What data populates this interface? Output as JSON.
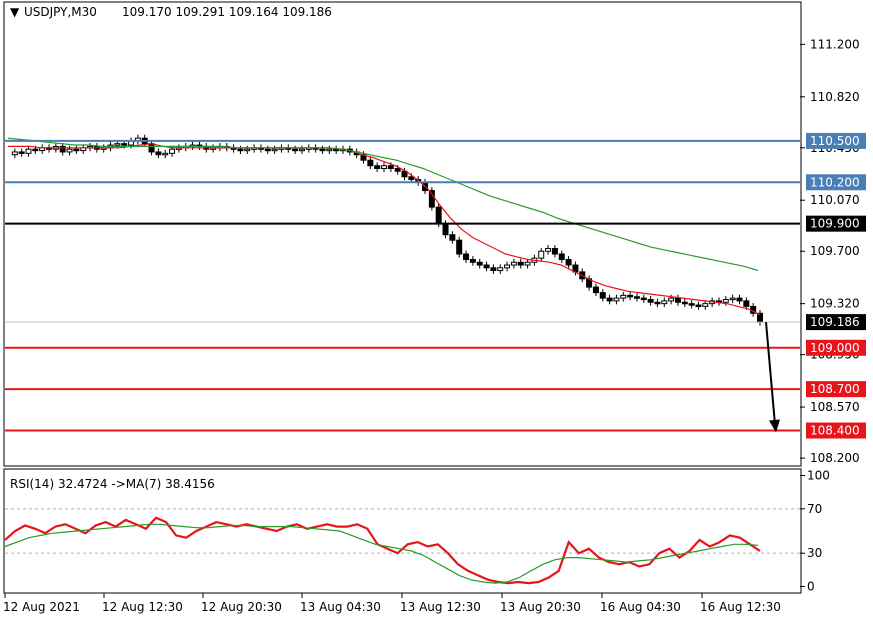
{
  "chart_data": [
    {
      "type": "candlestick",
      "header": {
        "symbol": "USDJPY,M30",
        "ohlc": "109.170 109.291 109.164 109.186"
      },
      "y_ticks": [
        "111.200",
        "110.820",
        "110.450",
        "110.070",
        "109.700",
        "109.320",
        "108.950",
        "108.570",
        "108.200"
      ],
      "y_tick_values": [
        111.2,
        110.82,
        110.45,
        110.07,
        109.7,
        109.32,
        108.95,
        108.57,
        108.2
      ],
      "ylim": [
        108.15,
        111.5
      ],
      "x_ticks": [
        "12 Aug 2021",
        "12 Aug 12:30",
        "12 Aug 20:30",
        "13 Aug 04:30",
        "13 Aug 12:30",
        "13 Aug 20:30",
        "16 Aug 04:30",
        "16 Aug 12:30"
      ],
      "levels": [
        {
          "value": 110.5,
          "label": "110.500",
          "color": "#4a7fb5"
        },
        {
          "value": 110.2,
          "label": "110.200",
          "color": "#4a7fb5"
        },
        {
          "value": 109.9,
          "label": "109.900",
          "color": "#000000"
        },
        {
          "value": 109.0,
          "label": "109.000",
          "color": "#e8141c"
        },
        {
          "value": 108.7,
          "label": "108.700",
          "color": "#e8141c"
        },
        {
          "value": 108.4,
          "label": "108.400",
          "color": "#e8141c"
        }
      ],
      "current_price": {
        "value": 109.186,
        "label": "109.186"
      },
      "arrow": {
        "from": 109.186,
        "to": 108.4
      },
      "price_path": [
        110.4,
        110.42,
        110.41,
        110.44,
        110.43,
        110.45,
        110.44,
        110.46,
        110.42,
        110.44,
        110.43,
        110.45,
        110.46,
        110.44,
        110.45,
        110.47,
        110.48,
        110.47,
        110.5,
        110.52,
        110.48,
        110.42,
        110.4,
        110.41,
        110.44,
        110.45,
        110.46,
        110.47,
        110.46,
        110.44,
        110.45,
        110.46,
        110.45,
        110.44,
        110.43,
        110.44,
        110.45,
        110.44,
        110.43,
        110.44,
        110.45,
        110.44,
        110.43,
        110.44,
        110.45,
        110.44,
        110.43,
        110.44,
        110.43,
        110.44,
        110.42,
        110.4,
        110.36,
        110.32,
        110.3,
        110.32,
        110.3,
        110.28,
        110.24,
        110.22,
        110.2,
        110.14,
        110.02,
        109.9,
        109.82,
        109.78,
        109.68,
        109.64,
        109.62,
        109.6,
        109.58,
        109.56,
        109.58,
        109.6,
        109.62,
        109.6,
        109.62,
        109.65,
        109.7,
        109.72,
        109.68,
        109.64,
        109.6,
        109.55,
        109.5,
        109.44,
        109.4,
        109.36,
        109.34,
        109.36,
        109.38,
        109.37,
        109.36,
        109.35,
        109.33,
        109.32,
        109.34,
        109.36,
        109.33,
        109.32,
        109.31,
        109.3,
        109.32,
        109.34,
        109.33,
        109.35,
        109.36,
        109.34,
        109.3,
        109.25,
        109.186
      ],
      "ma_fast": [
        110.46,
        110.46,
        110.46,
        110.45,
        110.45,
        110.45,
        110.45,
        110.45,
        110.45,
        110.45,
        110.45,
        110.46,
        110.47,
        110.48,
        110.46,
        110.45,
        110.45,
        110.45,
        110.45,
        110.45,
        110.45,
        110.45,
        110.45,
        110.45,
        110.45,
        110.45,
        110.45,
        110.45,
        110.45,
        110.45,
        110.44,
        110.43,
        110.4,
        110.38,
        110.35,
        110.32,
        110.28,
        110.22,
        110.15,
        110.04,
        109.94,
        109.86,
        109.8,
        109.76,
        109.72,
        109.68,
        109.66,
        109.64,
        109.63,
        109.62,
        109.6,
        109.56,
        109.52,
        109.48,
        109.45,
        109.43,
        109.41,
        109.4,
        109.39,
        109.38,
        109.37,
        109.36,
        109.35,
        109.34,
        109.33,
        109.32,
        109.3,
        109.28,
        109.24
      ],
      "ma_slow": [
        110.52,
        110.51,
        110.5,
        110.49,
        110.48,
        110.47,
        110.47,
        110.46,
        110.46,
        110.46,
        110.46,
        110.46,
        110.46,
        110.46,
        110.46,
        110.46,
        110.46,
        110.45,
        110.45,
        110.45,
        110.45,
        110.45,
        110.45,
        110.45,
        110.45,
        110.44,
        110.42,
        110.4,
        110.38,
        110.36,
        110.33,
        110.3,
        110.26,
        110.22,
        110.18,
        110.14,
        110.1,
        110.07,
        110.04,
        110.01,
        109.98,
        109.94,
        109.91,
        109.88,
        109.85,
        109.82,
        109.79,
        109.76,
        109.73,
        109.71,
        109.69,
        109.67,
        109.65,
        109.63,
        109.61,
        109.59,
        109.56
      ]
    },
    {
      "type": "line",
      "header": "RSI(14) 32.4724 ->MA(7) 38.4156",
      "y_ticks": [
        "100",
        "70",
        "30",
        "0"
      ],
      "y_tick_values": [
        100,
        70,
        30,
        0
      ],
      "dashed_levels": [
        70,
        30
      ],
      "ylim": [
        -5,
        105
      ],
      "series": [
        {
          "color": "#e8141c",
          "values": [
            42,
            50,
            55,
            52,
            48,
            54,
            56,
            52,
            48,
            55,
            58,
            54,
            60,
            56,
            52,
            62,
            58,
            46,
            44,
            50,
            54,
            58,
            56,
            54,
            56,
            54,
            52,
            50,
            54,
            56,
            52,
            54,
            56,
            54,
            54,
            56,
            52,
            38,
            34,
            30,
            38,
            40,
            36,
            38,
            30,
            20,
            14,
            10,
            6,
            4,
            3,
            4,
            3,
            4,
            8,
            14,
            40,
            30,
            34,
            26,
            22,
            20,
            22,
            18,
            20,
            30,
            34,
            26,
            32,
            42,
            36,
            40,
            46,
            44,
            38,
            32
          ]
        },
        {
          "color": "#2a9a2a",
          "values": [
            36,
            40,
            44,
            46,
            48,
            49,
            50,
            51,
            52,
            53,
            54,
            55,
            56,
            56,
            55,
            54,
            53,
            53,
            54,
            55,
            55,
            54,
            54,
            54,
            54,
            53,
            52,
            51,
            50,
            46,
            42,
            38,
            36,
            34,
            32,
            28,
            22,
            16,
            10,
            6,
            4,
            3,
            4,
            8,
            14,
            20,
            24,
            26,
            26,
            25,
            24,
            23,
            22,
            23,
            24,
            26,
            28,
            30,
            32,
            34,
            36,
            38,
            38,
            37
          ]
        }
      ]
    }
  ]
}
